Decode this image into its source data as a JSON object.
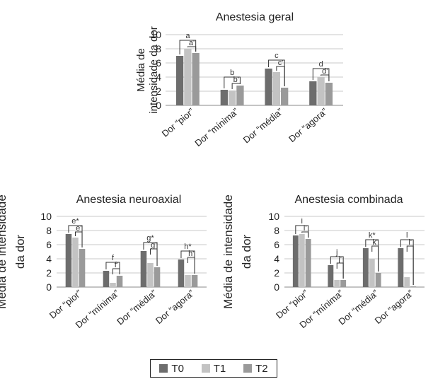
{
  "chart_data": [
    {
      "type": "bar",
      "title": "Anestesia geral",
      "ylabel": "Média de\nintensidade da dor",
      "ylim": [
        0,
        10
      ],
      "yticks": [
        0,
        2,
        4,
        6,
        8,
        10
      ],
      "categories": [
        "Dor “pior”",
        "Dor “mínima”",
        "Dor “média”",
        "Dor “agora”"
      ],
      "series": [
        {
          "name": "T0",
          "values": [
            7.0,
            2.2,
            5.2,
            3.4
          ]
        },
        {
          "name": "T1",
          "values": [
            8.0,
            2.1,
            4.7,
            4.0
          ]
        },
        {
          "name": "T2",
          "values": [
            7.4,
            2.8,
            2.5,
            3.2
          ]
        }
      ],
      "annotations": [
        [
          "a",
          "a'"
        ],
        [
          "b",
          "b'"
        ],
        [
          "c",
          "c'"
        ],
        [
          "d",
          "d'"
        ]
      ]
    },
    {
      "type": "bar",
      "title": "Anestesia neuroaxial",
      "ylabel": "Média de intensidade\nda dor",
      "ylim": [
        0,
        10
      ],
      "yticks": [
        0,
        2,
        4,
        6,
        8,
        10
      ],
      "categories": [
        "Dor “pior”",
        "Dor “mínima”",
        "Dor “média”",
        "Dor “agora”"
      ],
      "series": [
        {
          "name": "T0",
          "values": [
            7.5,
            2.3,
            5.1,
            3.9
          ]
        },
        {
          "name": "T1",
          "values": [
            7.0,
            0.6,
            3.4,
            1.7
          ]
        },
        {
          "name": "T2",
          "values": [
            5.4,
            1.6,
            2.8,
            1.7
          ]
        }
      ],
      "annotations": [
        [
          "e*",
          "e'"
        ],
        [
          "f",
          "f'"
        ],
        [
          "g*",
          "g'"
        ],
        [
          "h*",
          "h'"
        ]
      ]
    },
    {
      "type": "bar",
      "title": "Anestesia combinada",
      "ylabel": "Média de intensidade\nda dor",
      "ylim": [
        0,
        10
      ],
      "yticks": [
        0,
        2,
        4,
        6,
        8,
        10
      ],
      "categories": [
        "Dor “pior”",
        "Dor “mínima”",
        "Dor “média”",
        "Dor “agora”"
      ],
      "series": [
        {
          "name": "T0",
          "values": [
            7.3,
            3.1,
            5.5,
            5.5
          ]
        },
        {
          "name": "T1",
          "values": [
            7.5,
            1.0,
            4.0,
            1.4
          ]
        },
        {
          "name": "T2",
          "values": [
            6.8,
            1.0,
            2.0,
            0.1
          ]
        }
      ],
      "annotations": [
        [
          "i",
          "i'"
        ],
        [
          "j",
          "j'"
        ],
        [
          "k*",
          "k'"
        ],
        [
          "l",
          "l'"
        ]
      ]
    }
  ],
  "legend": {
    "items": [
      {
        "label": "T0",
        "color": "#6d6d6d"
      },
      {
        "label": "T1",
        "color": "#c3c3c3"
      },
      {
        "label": "T2",
        "color": "#9a9a9a"
      }
    ]
  }
}
